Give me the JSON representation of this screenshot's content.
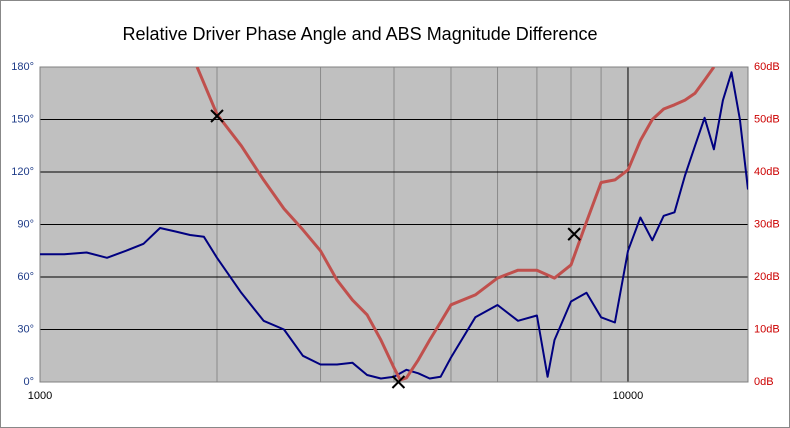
{
  "chart_data": {
    "type": "line",
    "title": "Relative Driver Phase Angle and ABS Magnitude  Difference",
    "x_scale": "log",
    "xlim": [
      1000,
      16000
    ],
    "xticks": [
      1000,
      10000
    ],
    "xminor": [
      2000,
      3000,
      4000,
      5000,
      6000,
      7000,
      8000,
      9000
    ],
    "ylim": [
      0,
      180
    ],
    "yticks": [
      {
        "value": 0,
        "label": "0°"
      },
      {
        "value": 30,
        "label": "30°"
      },
      {
        "value": 60,
        "label": "60°"
      },
      {
        "value": 90,
        "label": "90°"
      },
      {
        "value": 120,
        "label": "120°"
      },
      {
        "value": 150,
        "label": "150°"
      },
      {
        "value": 180,
        "label": "180°"
      }
    ],
    "y2lim": [
      0,
      60
    ],
    "y2ticks": [
      {
        "value": 0,
        "label": "0dB"
      },
      {
        "value": 10,
        "label": "10dB"
      },
      {
        "value": 20,
        "label": "20dB"
      },
      {
        "value": 30,
        "label": "30dB"
      },
      {
        "value": 40,
        "label": "40dB"
      },
      {
        "value": 50,
        "label": "50dB"
      },
      {
        "value": 60,
        "label": "60dB"
      }
    ],
    "grid": true,
    "plot_background": "#c0c0c0",
    "series": [
      {
        "color": "#000080",
        "axis": "y",
        "x": [
          1000,
          1100,
          1200,
          1300,
          1400,
          1500,
          1600,
          1700,
          1800,
          1900,
          2000,
          2200,
          2400,
          2600,
          2800,
          3000,
          3200,
          3400,
          3600,
          3800,
          4000,
          4200,
          4400,
          4600,
          4800,
          5000,
          5500,
          6000,
          6500,
          7000,
          7300,
          7500,
          8000,
          8500,
          9000,
          9500,
          10000,
          10500,
          11000,
          11500,
          12000,
          12500,
          13000,
          13500,
          14000,
          14500,
          15000,
          15500,
          16000
        ],
        "values": [
          73,
          73,
          74,
          71,
          75,
          79,
          88,
          86,
          84,
          83,
          71,
          51,
          35,
          30,
          15,
          10,
          10,
          11,
          4,
          2,
          3,
          7,
          5,
          2,
          3,
          14,
          37,
          44,
          35,
          38,
          3,
          24,
          46,
          51,
          37,
          34,
          75,
          94,
          81,
          95,
          97,
          118,
          135,
          151,
          133,
          161,
          177,
          150,
          110
        ]
      },
      {
        "color": "#c0504d",
        "axis": "y2",
        "x": [
          1850,
          2000,
          2200,
          2400,
          2600,
          2800,
          3000,
          3200,
          3400,
          3600,
          3800,
          4000,
          4100,
          4200,
          4400,
          4600,
          4800,
          5000,
          5500,
          6000,
          6500,
          7000,
          7500,
          8000,
          8500,
          9000,
          9500,
          10000,
          10500,
          11000,
          11500,
          12000,
          12500,
          13000,
          13500,
          14000
        ],
        "values": [
          60,
          51,
          45,
          38.5,
          33,
          29,
          25,
          19.4,
          15.6,
          12.8,
          8,
          2.7,
          0.4,
          0.8,
          4.2,
          8,
          11.4,
          14.7,
          16.6,
          19.8,
          21.3,
          21.3,
          19.8,
          22.3,
          30.5,
          38,
          38.5,
          40.4,
          46,
          50,
          52,
          52.8,
          53.7,
          55,
          57.5,
          60
        ]
      }
    ],
    "markers": {
      "x": [
        2000,
        4070,
        8100
      ],
      "y": [
        152,
        0,
        84.5
      ],
      "color": "#000000"
    }
  }
}
